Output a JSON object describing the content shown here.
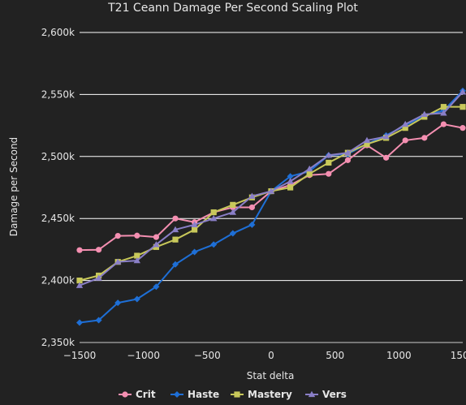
{
  "chart_data": {
    "type": "line",
    "title": "T21 Ceann Damage Per Second Scaling Plot",
    "xlabel": "Stat delta",
    "ylabel": "Damage per Second",
    "xlim": [
      -1500,
      1500
    ],
    "ylim": [
      2350000,
      2600000
    ],
    "x_ticks": [
      -1500,
      -1000,
      -500,
      0,
      500,
      1000,
      1500
    ],
    "x_tick_labels": [
      "−1500",
      "−1000",
      "−500",
      "0",
      "500",
      "1000",
      "1500"
    ],
    "y_ticks": [
      2350000,
      2400000,
      2450000,
      2500000,
      2550000,
      2600000
    ],
    "y_tick_labels": [
      "2,350k",
      "2,400k",
      "2,450k",
      "2,500k",
      "2,550k",
      "2,600k"
    ],
    "grid": "horizontal",
    "legend_position": "bottom-center",
    "x": [
      -1500,
      -1350,
      -1200,
      -1050,
      -900,
      -750,
      -600,
      -450,
      -300,
      -150,
      0,
      150,
      300,
      450,
      600,
      750,
      900,
      1050,
      1200,
      1350,
      1500
    ],
    "series": [
      {
        "name": "Crit",
        "color": "#f48fb1",
        "marker": "circle",
        "values": [
          2424500,
          2424800,
          2436000,
          2436200,
          2435000,
          2450000,
          2447000,
          2455000,
          2459000,
          2459000,
          2472000,
          2477000,
          2485000,
          2486000,
          2497000,
          2509000,
          2499000,
          2513000,
          2515000,
          2526000,
          2523000
        ]
      },
      {
        "name": "Haste",
        "color": "#1e6fd6",
        "marker": "diamond",
        "values": [
          2366000,
          2368000,
          2382000,
          2385000,
          2395000,
          2413000,
          2423000,
          2429000,
          2438000,
          2445000,
          2472000,
          2484000,
          2488000,
          2501000,
          2502000,
          2510000,
          2517000,
          2525000,
          2533000,
          2537000,
          2553000
        ]
      },
      {
        "name": "Mastery",
        "color": "#c8c85a",
        "marker": "square",
        "values": [
          2400000,
          2404000,
          2415000,
          2420000,
          2427000,
          2433000,
          2441000,
          2455000,
          2461000,
          2467000,
          2472000,
          2475000,
          2486000,
          2495000,
          2503000,
          2510000,
          2515000,
          2523000,
          2532000,
          2540000,
          2540000
        ]
      },
      {
        "name": "Vers",
        "color": "#8a7fc7",
        "marker": "triangle",
        "values": [
          2396000,
          2402000,
          2415000,
          2416000,
          2429000,
          2441000,
          2445000,
          2450000,
          2455000,
          2468000,
          2472000,
          2480000,
          2490000,
          2501000,
          2503000,
          2513000,
          2516000,
          2526000,
          2534000,
          2535000,
          2552000
        ]
      }
    ]
  }
}
